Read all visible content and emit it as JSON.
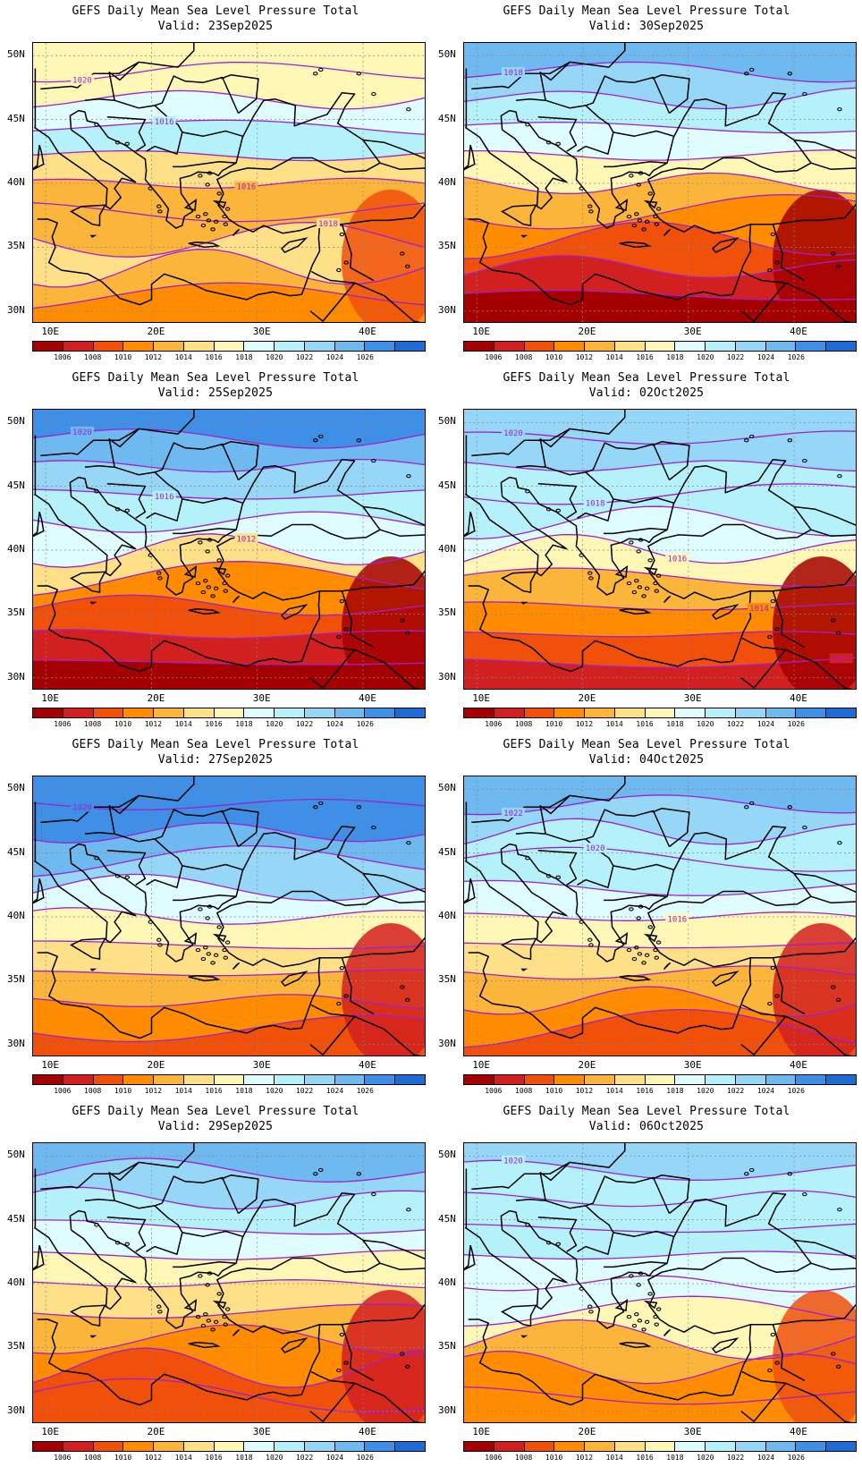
{
  "title": "GEFS Daily Mean Sea Level Pressure Total",
  "panels": [
    {
      "valid": "Valid: 23Sep2025",
      "palette_idx": [
        6,
        6,
        7,
        8,
        5,
        4,
        4,
        5,
        4,
        3
      ],
      "labels": [
        "1020",
        "1016",
        "1016",
        "1018"
      ]
    },
    {
      "valid": "Valid: 30Sep2025",
      "palette_idx": [
        10,
        9,
        8,
        7,
        6,
        4,
        3,
        2,
        1,
        0
      ],
      "labels": [
        "1018"
      ]
    },
    {
      "valid": "Valid: 25Sep2025",
      "palette_idx": [
        11,
        10,
        9,
        8,
        7,
        5,
        3,
        2,
        1,
        0
      ],
      "labels": [
        "1020",
        "1016",
        "1012"
      ]
    },
    {
      "valid": "Valid: 02Oct2025",
      "palette_idx": [
        9,
        9,
        8,
        8,
        7,
        6,
        4,
        3,
        2,
        1
      ],
      "labels": [
        "1020",
        "1018",
        "1016",
        "1014",
        "1012"
      ]
    },
    {
      "valid": "Valid: 27Sep2025",
      "palette_idx": [
        11,
        11,
        10,
        9,
        7,
        6,
        5,
        4,
        3,
        2
      ],
      "labels": [
        "1020"
      ]
    },
    {
      "valid": "Valid: 04Oct2025",
      "palette_idx": [
        10,
        9,
        8,
        8,
        7,
        6,
        5,
        4,
        3,
        2
      ],
      "labels": [
        "1022",
        "1020",
        "1016"
      ]
    },
    {
      "valid": "Valid: 29Sep2025",
      "palette_idx": [
        10,
        9,
        8,
        7,
        6,
        5,
        4,
        3,
        2,
        2
      ],
      "labels": []
    },
    {
      "valid": "Valid: 06Oct2025",
      "palette_idx": [
        9,
        8,
        8,
        8,
        7,
        7,
        6,
        4,
        3,
        3
      ],
      "labels": [
        "1020"
      ]
    }
  ],
  "lat_labels": [
    "50N",
    "45N",
    "40N",
    "35N",
    "30N"
  ],
  "lon_labels": [
    "10E",
    "20E",
    "30E",
    "40E"
  ],
  "colorbar": {
    "colors": [
      "#a50000",
      "#d21f1f",
      "#f0500a",
      "#ff8c00",
      "#fbb53a",
      "#fee089",
      "#fff7b6",
      "#dffcff",
      "#b4f1fb",
      "#96d6f7",
      "#6eb9f0",
      "#3f8fe6",
      "#1f6bd6"
    ],
    "labels": [
      "1006",
      "1008",
      "1010",
      "1012",
      "1014",
      "1016",
      "1018",
      "1020",
      "1022",
      "1024",
      "1026"
    ]
  },
  "contour_color": "#a020d0",
  "coast_color": "#000000"
}
